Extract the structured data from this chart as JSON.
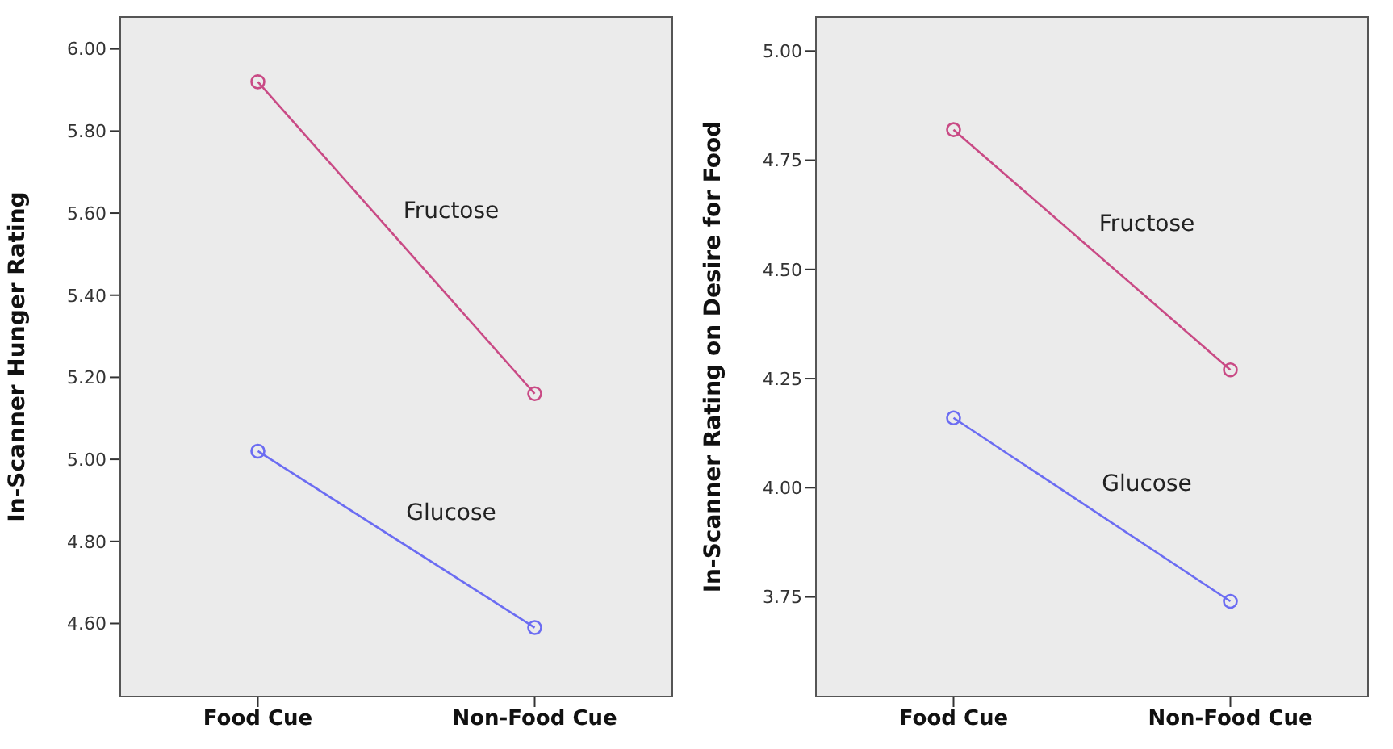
{
  "chart_data": [
    {
      "type": "line",
      "ylabel": "In-Scanner Hunger Rating",
      "categories": [
        "Food Cue",
        "Non-Food Cue"
      ],
      "ylim": [
        4.42,
        6.08
      ],
      "yticks": [
        {
          "value": 4.6,
          "label": "4.60"
        },
        {
          "value": 4.8,
          "label": "4.80"
        },
        {
          "value": 5.0,
          "label": "5.00"
        },
        {
          "value": 5.2,
          "label": "5.20"
        },
        {
          "value": 5.4,
          "label": "5.40"
        },
        {
          "value": 5.6,
          "label": "5.60"
        },
        {
          "value": 5.8,
          "label": "5.80"
        },
        {
          "value": 6.0,
          "label": "6.00"
        }
      ],
      "grid": false,
      "legend": false,
      "marker": "circle",
      "line_style": "solid",
      "series": [
        {
          "name": "Fructose",
          "color": "#c94a85",
          "values": [
            5.92,
            5.16
          ]
        },
        {
          "name": "Glucose",
          "color": "#6b6cf2",
          "values": [
            5.02,
            4.59
          ]
        }
      ]
    },
    {
      "type": "line",
      "ylabel": "In-Scanner Rating on Desire for Food",
      "categories": [
        "Food Cue",
        "Non-Food Cue"
      ],
      "ylim": [
        3.52,
        5.08
      ],
      "yticks": [
        {
          "value": 3.75,
          "label": "3.75"
        },
        {
          "value": 4.0,
          "label": "4.00"
        },
        {
          "value": 4.25,
          "label": "4.25"
        },
        {
          "value": 4.5,
          "label": "4.50"
        },
        {
          "value": 4.75,
          "label": "4.75"
        },
        {
          "value": 5.0,
          "label": "5.00"
        }
      ],
      "grid": false,
      "legend": false,
      "marker": "circle",
      "line_style": "solid",
      "series": [
        {
          "name": "Fructose",
          "color": "#c94a85",
          "values": [
            4.82,
            4.27
          ]
        },
        {
          "name": "Glucose",
          "color": "#6b6cf2",
          "values": [
            4.16,
            3.74
          ]
        }
      ]
    }
  ]
}
